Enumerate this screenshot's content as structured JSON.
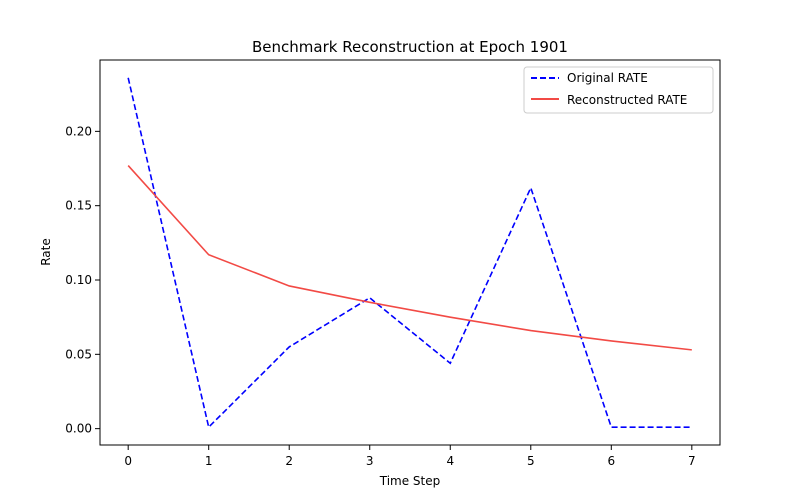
{
  "chart_data": {
    "type": "line",
    "title": "Benchmark Reconstruction at Epoch 1901",
    "xlabel": "Time Step",
    "ylabel": "Rate",
    "x": [
      0,
      1,
      2,
      3,
      4,
      5,
      6,
      7
    ],
    "xticks": [
      "0",
      "1",
      "2",
      "3",
      "4",
      "5",
      "6",
      "7"
    ],
    "yticks": [
      "0.00",
      "0.05",
      "0.10",
      "0.15",
      "0.20"
    ],
    "xlim": [
      -0.35,
      7.35
    ],
    "ylim": [
      -0.011,
      0.248
    ],
    "grid": false,
    "legend_position": "upper right",
    "series": [
      {
        "name": "Original RATE",
        "color": "#0000ff",
        "style": "dashed",
        "values": [
          0.236,
          0.001,
          0.055,
          0.088,
          0.044,
          0.162,
          0.001,
          0.001
        ]
      },
      {
        "name": "Reconstructed RATE",
        "color": "#f24a45",
        "style": "solid",
        "values": [
          0.177,
          0.117,
          0.096,
          0.085,
          0.075,
          0.066,
          0.059,
          0.053
        ]
      }
    ]
  }
}
